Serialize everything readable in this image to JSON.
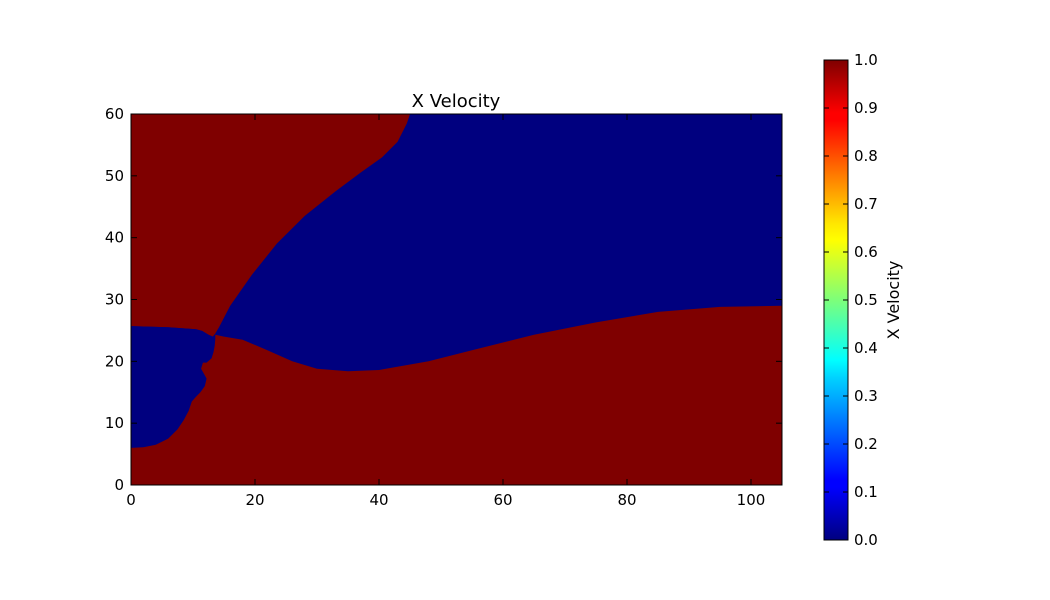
{
  "colors": {
    "low": "#00007f",
    "high": "#7f0000",
    "colormap": "jet"
  },
  "chart_data": {
    "type": "heatmap",
    "title": "X Velocity",
    "xlabel": "",
    "ylabel": "",
    "xlim": [
      0,
      105
    ],
    "ylim": [
      0,
      60
    ],
    "x_ticks": [
      "0",
      "20",
      "40",
      "60",
      "80",
      "100"
    ],
    "y_ticks": [
      "0",
      "10",
      "20",
      "30",
      "40",
      "50",
      "60"
    ],
    "grid": false,
    "colorbar": {
      "label": "X Velocity",
      "range": [
        0.0,
        1.0
      ],
      "ticks": [
        "0.0",
        "0.1",
        "0.2",
        "0.3",
        "0.4",
        "0.5",
        "0.6",
        "0.7",
        "0.8",
        "0.9",
        "1.0"
      ]
    },
    "regions": [
      {
        "name": "upper-left region",
        "value": 1.0,
        "boundary": [
          [
            0,
            60
          ],
          [
            45,
            60
          ],
          [
            44.5,
            58.5
          ],
          [
            43,
            55.5
          ],
          [
            40.5,
            53
          ],
          [
            37,
            50.5
          ],
          [
            33,
            47.5
          ],
          [
            28,
            43.5
          ],
          [
            23.5,
            39
          ],
          [
            19.5,
            34
          ],
          [
            16,
            29
          ],
          [
            14.2,
            25.5
          ],
          [
            13.6,
            24.5
          ],
          [
            13.2,
            24.0
          ],
          [
            12.5,
            24.3
          ],
          [
            11.5,
            24.9
          ],
          [
            10.5,
            25.2
          ],
          [
            6,
            25.5
          ],
          [
            0,
            25.7
          ]
        ]
      },
      {
        "name": "lower-left region",
        "value": 0.0,
        "boundary": [
          [
            0,
            25.7
          ],
          [
            6,
            25.5
          ],
          [
            10.5,
            25.2
          ],
          [
            11.5,
            24.9
          ],
          [
            12.5,
            24.3
          ],
          [
            13.2,
            24.0
          ],
          [
            13.6,
            23.6
          ],
          [
            13.5,
            22.5
          ],
          [
            13.3,
            21.5
          ],
          [
            13.0,
            20.5
          ],
          [
            12.2,
            19.8
          ],
          [
            11.6,
            19.8
          ],
          [
            11.3,
            18.8
          ],
          [
            11.8,
            17.9
          ],
          [
            12.2,
            17.2
          ],
          [
            11.9,
            16.0
          ],
          [
            11.2,
            15.0
          ],
          [
            10.5,
            14.3
          ],
          [
            9.8,
            13.5
          ],
          [
            9.3,
            12.0
          ],
          [
            8.5,
            10.5
          ],
          [
            7.5,
            9.0
          ],
          [
            6,
            7.5
          ],
          [
            4,
            6.5
          ],
          [
            2,
            6.1
          ],
          [
            0,
            6.0
          ]
        ]
      },
      {
        "name": "bottom region",
        "value": 1.0,
        "boundary": [
          [
            0,
            0
          ],
          [
            105,
            0
          ],
          [
            105,
            29
          ],
          [
            95,
            28.8
          ],
          [
            85,
            28.0
          ],
          [
            75,
            26.3
          ],
          [
            65,
            24.3
          ],
          [
            55,
            21.8
          ],
          [
            48,
            20.0
          ],
          [
            40,
            18.6
          ],
          [
            35,
            18.4
          ],
          [
            30,
            18.8
          ],
          [
            26,
            20.0
          ],
          [
            22,
            21.8
          ],
          [
            18,
            23.5
          ],
          [
            15,
            24.0
          ],
          [
            13.6,
            24.3
          ],
          [
            13.6,
            23.6
          ],
          [
            13.5,
            22.5
          ],
          [
            13.3,
            21.5
          ],
          [
            13.0,
            20.5
          ],
          [
            12.2,
            19.8
          ],
          [
            11.6,
            19.8
          ],
          [
            11.3,
            18.8
          ],
          [
            11.8,
            17.9
          ],
          [
            12.2,
            17.2
          ],
          [
            11.9,
            16.0
          ],
          [
            11.2,
            15.0
          ],
          [
            10.5,
            14.3
          ],
          [
            9.8,
            13.5
          ],
          [
            9.3,
            12.0
          ],
          [
            8.5,
            10.5
          ],
          [
            7.5,
            9.0
          ],
          [
            6,
            7.5
          ],
          [
            4,
            6.5
          ],
          [
            2,
            6.1
          ],
          [
            0,
            6.0
          ]
        ]
      }
    ]
  }
}
